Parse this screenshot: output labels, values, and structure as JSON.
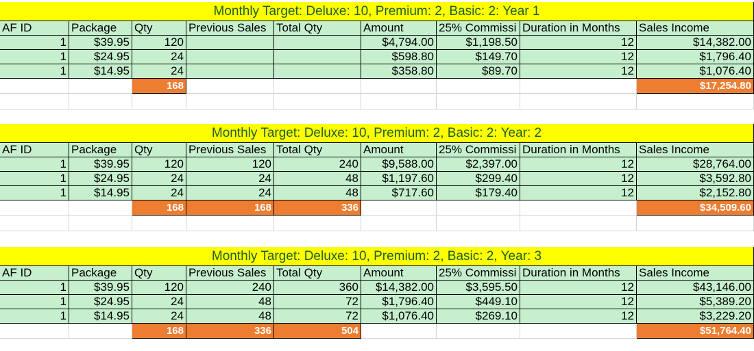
{
  "headers": [
    "AF ID",
    "Package",
    "Qty",
    "Previous Sales",
    "Total Qty",
    "Amount",
    "25% Commissi",
    "Duration in Months",
    "Sales Income"
  ],
  "blocks": [
    {
      "title": "Monthly Target: Deluxe: 10, Premium: 2, Basic: 2:   Year 1",
      "rows": [
        [
          "1",
          "$39.95",
          "120",
          "",
          "",
          "$4,794.00",
          "$1,198.50",
          "12",
          "$14,382.00"
        ],
        [
          "1",
          "$24.95",
          "24",
          "",
          "",
          "$598.80",
          "$149.70",
          "12",
          "$1,796.40"
        ],
        [
          "1",
          "$14.95",
          "24",
          "",
          "",
          "$358.80",
          "$89.70",
          "12",
          "$1,076.40"
        ]
      ],
      "totals": {
        "qty": "168",
        "prev": "",
        "total_qty": "",
        "income": "$17,254.80"
      }
    },
    {
      "title": "Monthly Target: Deluxe: 10, Premium: 2, Basic: 2:  Year: 2",
      "rows": [
        [
          "1",
          "$39.95",
          "120",
          "120",
          "240",
          "$9,588.00",
          "$2,397.00",
          "12",
          "$28,764.00"
        ],
        [
          "1",
          "$24.95",
          "24",
          "24",
          "48",
          "$1,197.60",
          "$299.40",
          "12",
          "$3,592.80"
        ],
        [
          "1",
          "$14.95",
          "24",
          "24",
          "48",
          "$717.60",
          "$179.40",
          "12",
          "$2,152.80"
        ]
      ],
      "totals": {
        "qty": "168",
        "prev": "168",
        "total_qty": "336",
        "income": "$34,509.60"
      }
    },
    {
      "title": "Monthly Target: Deluxe: 10, Premium: 2, Basic: 2, Year: 3",
      "rows": [
        [
          "1",
          "$39.95",
          "120",
          "240",
          "360",
          "$14,382.00",
          "$3,595.50",
          "12",
          "$43,146.00"
        ],
        [
          "1",
          "$24.95",
          "24",
          "48",
          "72",
          "$1,796.40",
          "$449.10",
          "12",
          "$5,389.20"
        ],
        [
          "1",
          "$14.95",
          "24",
          "48",
          "72",
          "$1,076.40",
          "$269.10",
          "12",
          "$3,229.20"
        ]
      ],
      "totals": {
        "qty": "168",
        "prev": "336",
        "total_qty": "504",
        "income": "$51,764.40"
      }
    }
  ],
  "colors": {
    "title_fill": "#ffff00",
    "data_fill": "#c6efce",
    "total_fill": "#ed7d31",
    "title_text": "#1f5e2c"
  }
}
